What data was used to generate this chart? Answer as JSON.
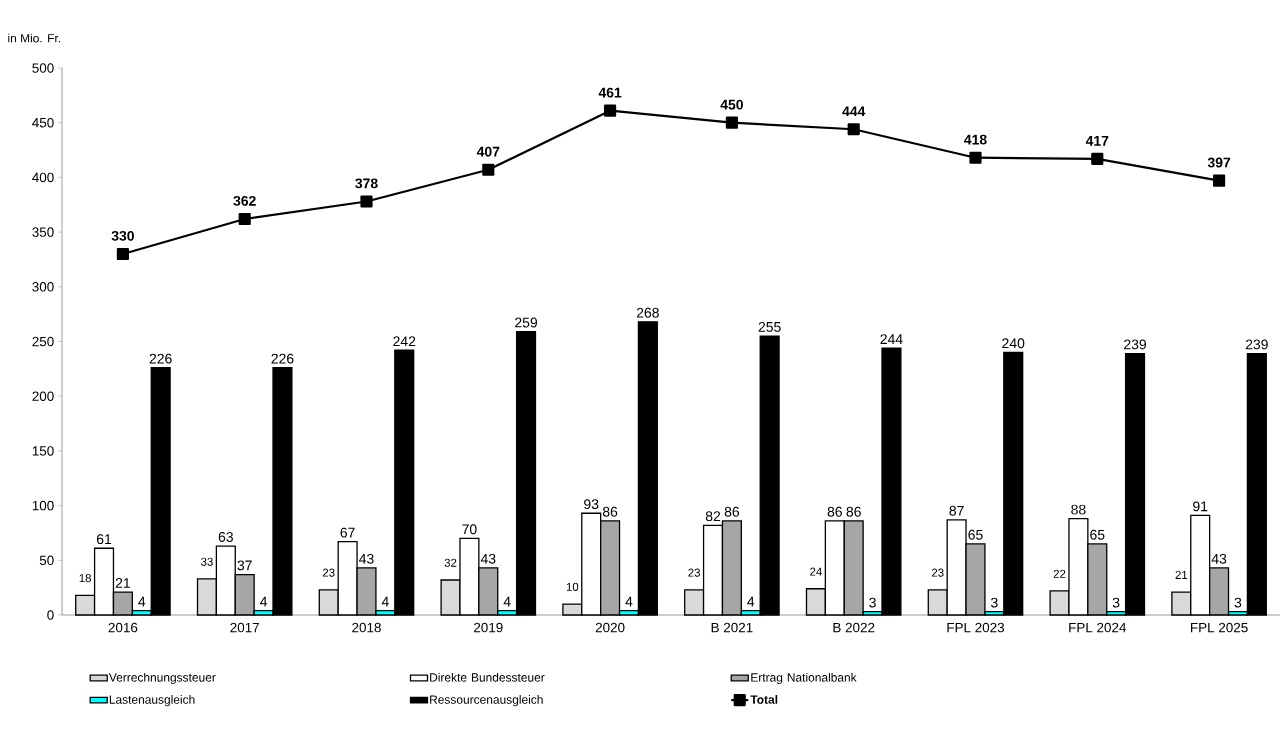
{
  "chart_data": {
    "type": "bar",
    "ylabel": "in Mio. Fr.",
    "categories": [
      "2016",
      "2017",
      "2018",
      "2019",
      "2020",
      "B 2021",
      "B 2022",
      "FPL 2023",
      "FPL 2024",
      "FPL 2025"
    ],
    "series": [
      {
        "name": "Verrechnungssteuer",
        "color": "#d9d9d9",
        "values": [
          18,
          33,
          23,
          32,
          10,
          23,
          24,
          23,
          22,
          21
        ]
      },
      {
        "name": "Direkte Bundessteuer",
        "color": "#ffffff",
        "values": [
          61,
          63,
          67,
          70,
          93,
          82,
          86,
          87,
          88,
          91
        ]
      },
      {
        "name": "Ertrag Nationalbank",
        "color": "#a6a6a6",
        "values": [
          21,
          37,
          43,
          43,
          86,
          86,
          86,
          65,
          65,
          43
        ]
      },
      {
        "name": "Lastenausgleich",
        "color": "#00ffff",
        "values": [
          4,
          4,
          4,
          4,
          4,
          4,
          3,
          3,
          3,
          3
        ]
      },
      {
        "name": "Ressourcenausgleich",
        "color": "#000000",
        "values": [
          226,
          226,
          242,
          259,
          268,
          255,
          244,
          240,
          239,
          239
        ]
      },
      {
        "name": "Total",
        "type": "line",
        "color": "#000000",
        "marker": "square",
        "values": [
          330,
          362,
          378,
          407,
          461,
          450,
          444,
          418,
          417,
          397
        ]
      }
    ],
    "ylim": [
      0,
      500
    ],
    "yticks": [
      0,
      50,
      100,
      150,
      200,
      250,
      300,
      350,
      400,
      450,
      500
    ],
    "data_labels": true,
    "grid": false,
    "legend": "bottom"
  }
}
